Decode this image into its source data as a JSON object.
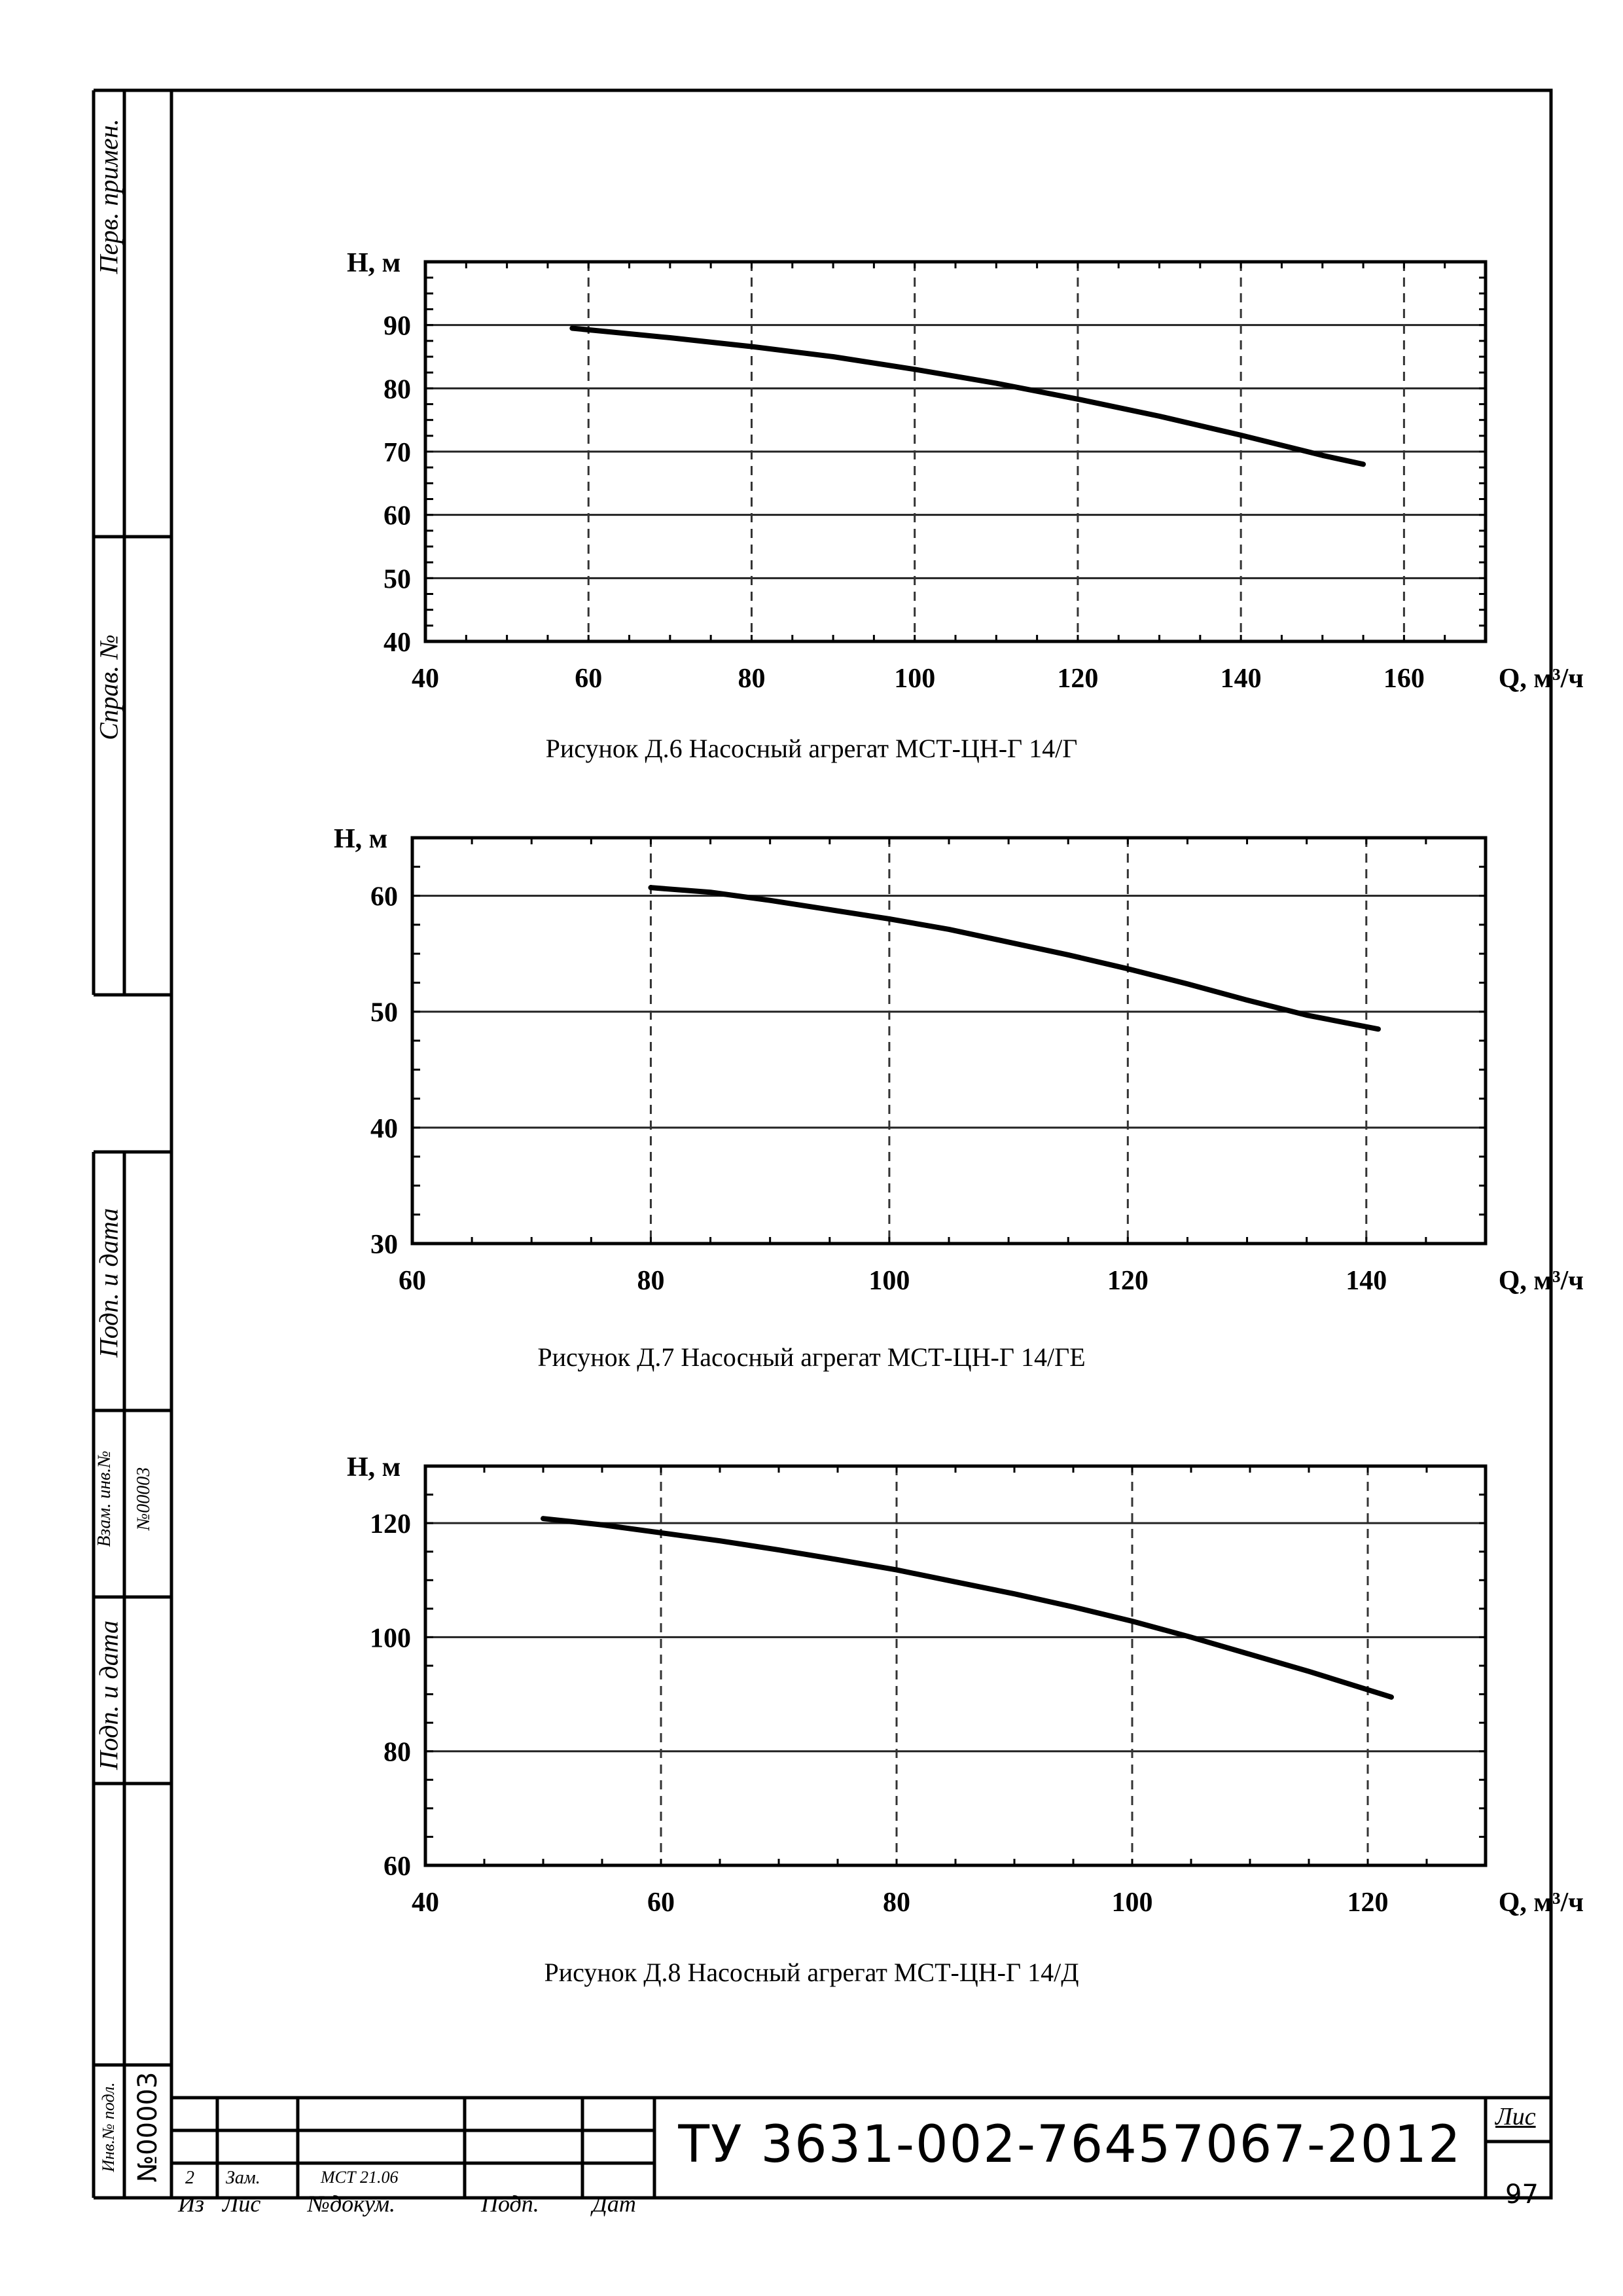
{
  "side_labels": {
    "first_use": "Перв. примен.",
    "ref_no": "Справ. №",
    "sign_date_1": "Подп. и дата",
    "replace_inv": "Взам. инв.№",
    "replace_inv_value": "№00003",
    "sign_date_2": "Подп. и дата",
    "inv_no_orig": "Инв.№ подл.",
    "inv_no_value": "№00003"
  },
  "title_block": {
    "change_no": "2",
    "change_type": "Зам.",
    "document_ref": "МСТ 21.06",
    "col_izm": "Из",
    "col_list": "Лис",
    "col_doc": "№докум.",
    "col_sign": "Подп.",
    "col_date": "Дат",
    "doc_code": "ТУ 3631-002-76457067-2012",
    "sheet_label": "Лис",
    "sheet_number": "97"
  },
  "chart_data": [
    {
      "type": "line",
      "title": "Рисунок Д.6 Насосный агрегат МСТ-ЦН-Г 14/Г",
      "xlabel": "Q, м³/ч",
      "ylabel": "Н, м",
      "xlim": [
        40,
        170
      ],
      "ylim": [
        40,
        100
      ],
      "xticks": [
        40,
        60,
        80,
        100,
        120,
        140,
        160
      ],
      "yticks": [
        40,
        50,
        60,
        70,
        80,
        90
      ],
      "x_tick_labels": [
        "40",
        "60",
        "80",
        "100",
        "120",
        "140",
        "160"
      ],
      "y_tick_labels": [
        "40",
        "50",
        "60",
        "70",
        "80",
        "90"
      ],
      "grid": true,
      "series": [
        {
          "x": [
            58,
            70,
            80,
            90,
            100,
            110,
            120,
            130,
            140,
            150,
            155
          ],
          "y": [
            89.5,
            88.0,
            86.6,
            85.0,
            83.0,
            80.8,
            78.3,
            75.6,
            72.6,
            69.4,
            68.0
          ]
        }
      ]
    },
    {
      "type": "line",
      "title": "Рисунок Д.7 Насосный агрегат МСТ-ЦН-Г 14/ГЕ",
      "xlabel": "Q, м³/ч",
      "ylabel": "Н, м",
      "xlim": [
        60,
        150
      ],
      "ylim": [
        30,
        65
      ],
      "xticks": [
        60,
        80,
        100,
        120,
        140
      ],
      "yticks": [
        30,
        40,
        50,
        60
      ],
      "x_tick_labels": [
        "60",
        "80",
        "100",
        "120",
        "140"
      ],
      "y_tick_labels": [
        "30",
        "40",
        "50",
        "60"
      ],
      "grid": true,
      "series": [
        {
          "x": [
            80,
            85,
            90,
            95,
            100,
            105,
            110,
            115,
            120,
            125,
            130,
            135,
            141
          ],
          "y": [
            60.7,
            60.3,
            59.6,
            58.8,
            58.0,
            57.1,
            56.0,
            54.9,
            53.7,
            52.4,
            51.0,
            49.7,
            48.5
          ]
        }
      ]
    },
    {
      "type": "line",
      "title": "Рисунок Д.8 Насосный агрегат МСТ-ЦН-Г 14/Д",
      "xlabel": "Q, м³/ч",
      "ylabel": "Н, м",
      "xlim": [
        40,
        130
      ],
      "ylim": [
        60,
        130
      ],
      "xticks": [
        40,
        60,
        80,
        100,
        120
      ],
      "yticks": [
        60,
        80,
        100,
        120
      ],
      "x_tick_labels": [
        "40",
        "60",
        "80",
        "100",
        "120"
      ],
      "y_tick_labels": [
        "60",
        "80",
        "100",
        "120"
      ],
      "grid": true,
      "series": [
        {
          "x": [
            50,
            55,
            60,
            65,
            70,
            75,
            80,
            85,
            90,
            95,
            100,
            105,
            110,
            115,
            122
          ],
          "y": [
            120.8,
            119.7,
            118.3,
            116.9,
            115.3,
            113.6,
            111.8,
            109.7,
            107.6,
            105.3,
            102.8,
            100.0,
            97.0,
            94.0,
            89.5
          ]
        }
      ]
    }
  ]
}
